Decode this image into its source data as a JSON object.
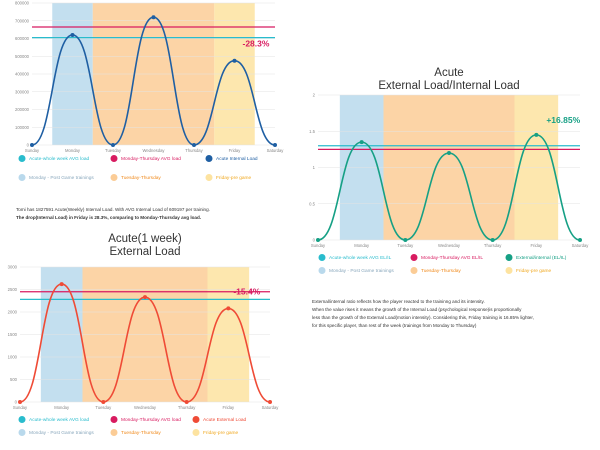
{
  "colors": {
    "whole_week_avg": "#29bccd",
    "mon_thu_avg": "#d81b60",
    "monday_band": "#b9d9ec",
    "tue_thu_band": "#fbcc96",
    "friday_band": "#fde3a0"
  },
  "chart_data": [
    {
      "type": "line",
      "title": "",
      "categories": [
        "Sunday",
        "Monday",
        "Tuesday",
        "Wednesday",
        "Thursday",
        "Friday",
        "Saturday"
      ],
      "y_ticks": [
        "0",
        "100000",
        "200000",
        "300000",
        "400000",
        "500000",
        "600000",
        "700000",
        "800000"
      ],
      "ylim": [
        0,
        800000
      ],
      "series": [
        {
          "name": "Acute-whole week AVG load",
          "color": "#29bccd",
          "values": [
            605000,
            605000,
            605000,
            605000,
            605000,
            605000,
            605000
          ]
        },
        {
          "name": "Monday-Thursday AVG load",
          "color": "#d81b60",
          "values": [
            665000,
            665000,
            665000,
            665000,
            665000,
            665000,
            665000
          ]
        },
        {
          "name": "Acute Internal Load",
          "color": "#1f5fa3",
          "values": [
            0,
            620000,
            0,
            720000,
            0,
            475000,
            0
          ]
        }
      ],
      "bands": [
        "Monday - Post Game trainings",
        "Tuesday-Thursday",
        "Friday-pre game"
      ],
      "annotation": "-28.3%",
      "annotation_color": "#d81b60",
      "grid": true,
      "legend_position": "bottom"
    },
    {
      "type": "line",
      "title": "Acute\nExternal Load/Internal Load",
      "categories": [
        "Sunday",
        "Monday",
        "Tuesday",
        "Wednesday",
        "Thursday",
        "Friday",
        "Saturday"
      ],
      "y_ticks": [
        "0",
        "0.5",
        "1",
        "1.5",
        "2"
      ],
      "ylim": [
        0,
        2
      ],
      "series": [
        {
          "name": "Acute-whole week AVG EL/IL",
          "color": "#29bccd",
          "values": [
            1.3,
            1.3,
            1.3,
            1.3,
            1.3,
            1.3,
            1.3
          ]
        },
        {
          "name": "Monday-Thursday AVG EL/IL",
          "color": "#d81b60",
          "values": [
            1.25,
            1.25,
            1.25,
            1.25,
            1.25,
            1.25,
            1.25
          ]
        },
        {
          "name": "External/internal (EL/IL)",
          "color": "#16a085",
          "values": [
            0,
            1.35,
            0,
            1.2,
            0,
            1.45,
            0
          ]
        }
      ],
      "bands": [
        "Monday - Post Game trainings",
        "Tuesday-Thursday",
        "Friday-pre game"
      ],
      "annotation": "+16.85%",
      "annotation_color": "#16a085",
      "grid": true,
      "legend_position": "bottom"
    },
    {
      "type": "line",
      "title": "Acute(1 week)\nExternal Load",
      "categories": [
        "Sunday",
        "Monday",
        "Tuesday",
        "Wednesday",
        "Thursday",
        "Friday",
        "Saturday"
      ],
      "y_ticks": [
        "0",
        "500",
        "1000",
        "1500",
        "2000",
        "2500",
        "3000"
      ],
      "ylim": [
        0,
        3000
      ],
      "series": [
        {
          "name": "Acute-whole week AVG load",
          "color": "#29bccd",
          "values": [
            2280,
            2280,
            2280,
            2280,
            2280,
            2280,
            2280
          ]
        },
        {
          "name": "Monday-Thursday AVG load",
          "color": "#d81b60",
          "values": [
            2450,
            2450,
            2450,
            2450,
            2450,
            2450,
            2450
          ]
        },
        {
          "name": "Acute External Load",
          "color": "#ef4b36",
          "values": [
            0,
            2620,
            0,
            2330,
            0,
            2080,
            0
          ]
        }
      ],
      "bands": [
        "Monday - Post Game trainings",
        "Tuesday-Thursday",
        "Friday-pre game"
      ],
      "annotation": "-15.4%",
      "annotation_color": "#d81b60",
      "grid": true,
      "legend_position": "bottom"
    }
  ],
  "text_left": [
    "Tomi has 1827591 Acute(Weekly) Internal Load. With AVG Internal Load of 609197 per training.",
    "The drop(Internal Load) in Friday is 28.3%, comparing to Monday-Thursday avg load."
  ],
  "text_right": [
    "External/internal ratio reflects how the player reacted to the traininng and its intensity.",
    "When the value rises it means  the growth of the Internal Load (psychological response)is proportionally",
    "less than the growth of the External Load(motion intensity). Considering this, Friday training is 16.85% lighter,",
    "for this specific player, than rest of the week (trainings from Monday to Thursday)"
  ]
}
